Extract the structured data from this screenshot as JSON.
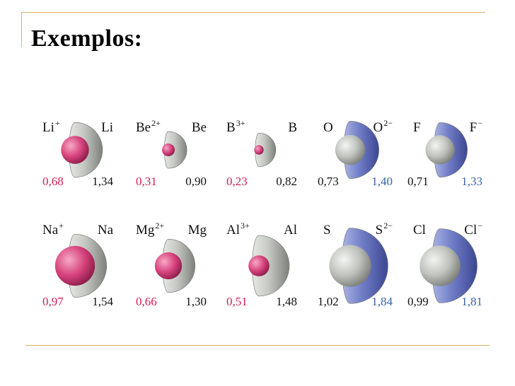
{
  "header": {
    "title": "Exemplos:"
  },
  "colors": {
    "cation_sphere": "#d8457e",
    "neutral_sphere": "#bfc2bd",
    "anion_sphere": "#6d7ac4",
    "cation_value": "#d11f55",
    "neutral_value": "#111111",
    "anion_value": "#3b64a8",
    "accent_rule": "#d9b45a"
  },
  "figure": {
    "rows": [
      {
        "pairs": [
          {
            "type": "cation",
            "ion": {
              "symbol": "Li",
              "charge": "+",
              "radius": "0,68"
            },
            "atom": {
              "symbol": "Li",
              "radius": "1,34"
            }
          },
          {
            "type": "cation",
            "ion": {
              "symbol": "Be",
              "charge": "2+",
              "radius": "0,31"
            },
            "atom": {
              "symbol": "Be",
              "radius": "0,90"
            }
          },
          {
            "type": "cation",
            "ion": {
              "symbol": "B",
              "charge": "3+",
              "radius": "0,23"
            },
            "atom": {
              "symbol": "B",
              "radius": "0,82"
            }
          },
          {
            "type": "anion",
            "atom": {
              "symbol": "O",
              "radius": "0,73"
            },
            "ion": {
              "symbol": "O",
              "charge": "2−",
              "radius": "1,40"
            }
          },
          {
            "type": "anion",
            "atom": {
              "symbol": "F",
              "radius": "0,71"
            },
            "ion": {
              "symbol": "F",
              "charge": "−",
              "radius": "1,33"
            }
          }
        ]
      },
      {
        "pairs": [
          {
            "type": "cation",
            "ion": {
              "symbol": "Na",
              "charge": "+",
              "radius": "0,97"
            },
            "atom": {
              "symbol": "Na",
              "radius": "1,54"
            }
          },
          {
            "type": "cation",
            "ion": {
              "symbol": "Mg",
              "charge": "2+",
              "radius": "0,66"
            },
            "atom": {
              "symbol": "Mg",
              "radius": "1,30"
            }
          },
          {
            "type": "cation",
            "ion": {
              "symbol": "Al",
              "charge": "3+",
              "radius": "0,51"
            },
            "atom": {
              "symbol": "Al",
              "radius": "1,48"
            }
          },
          {
            "type": "anion",
            "atom": {
              "symbol": "S",
              "radius": "1,02"
            },
            "ion": {
              "symbol": "S",
              "charge": "2−",
              "radius": "1,84"
            }
          },
          {
            "type": "anion",
            "atom": {
              "symbol": "Cl",
              "radius": "0,99"
            },
            "ion": {
              "symbol": "Cl",
              "charge": "−",
              "radius": "1,81"
            }
          }
        ]
      }
    ]
  }
}
